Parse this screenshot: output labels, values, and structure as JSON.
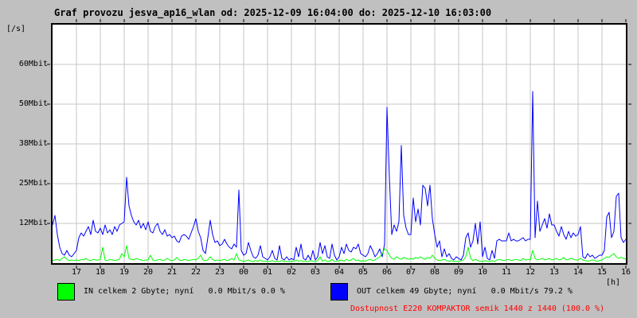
{
  "title": "Graf provozu jesva_ap16_wlan od: 2025-12-09 16:04:00 do: 2025-12-10 16:03:00",
  "colors": {
    "background": "#c0c0c0",
    "plot_background": "#ffffff",
    "grid": "#c6c6c6",
    "frame": "#000000",
    "in_series": "#00ff00",
    "out_series": "#0000ff",
    "availability_text": "#ff0000",
    "text": "#000000"
  },
  "y_axis": {
    "unit_label": "[/s]",
    "ticks": [
      {
        "label": "60Mbit",
        "mbit": 62.5
      },
      {
        "label": "50Mbit",
        "mbit": 50
      },
      {
        "label": "38Mbit",
        "mbit": 37.5
      },
      {
        "label": "25Mbit",
        "mbit": 25
      },
      {
        "label": "12Mbit",
        "mbit": 12.5
      }
    ]
  },
  "x_axis": {
    "unit_label": "[h]",
    "ticks": [
      "17",
      "18",
      "19",
      "20",
      "21",
      "22",
      "23",
      "00",
      "01",
      "02",
      "03",
      "04",
      "05",
      "06",
      "07",
      "08",
      "09",
      "10",
      "11",
      "12",
      "13",
      "14",
      "15",
      "16"
    ]
  },
  "legend": {
    "in_label": "IN celkem 2 Gbyte; nyní   0.0 Mbit/s 0.0 %",
    "out_label": "OUT celkem 49 Gbyte; nyní   0.0 Mbit/s 79.2 %"
  },
  "availability": {
    "text": "Dostupnost E220 KOMPAKTOR semik 1440 z 1440 (100.0 %)"
  },
  "chart_data": {
    "type": "line",
    "title": "Graf provozu jesva_ap16_wlan od: 2025-12-09 16:04:00 do: 2025-12-10 16:03:00",
    "xlabel": "[h] — clock hours from 17:00 through 16:00 next day",
    "ylabel": "[/s] Mbit/s",
    "ylim": [
      0,
      75
    ],
    "x_hours_start": 0,
    "x_hours_step": 0.1,
    "grid": true,
    "legend_position": "bottom",
    "series": [
      {
        "name": "IN (Mbit/s)",
        "color": "#00ff00",
        "values": [
          0.8,
          1,
          1.2,
          0.8,
          1.5,
          2,
          1.2,
          0.8,
          1,
          0.8,
          1,
          0.8,
          1.2,
          1,
          1.5,
          1,
          0.8,
          1.2,
          1,
          1,
          1.2,
          5,
          1,
          0.8,
          1.2,
          1,
          0.8,
          1,
          1.2,
          3,
          2,
          5.5,
          1.5,
          1.2,
          1,
          1.5,
          1.2,
          1,
          0.8,
          1,
          1,
          2.5,
          1,
          0.8,
          1,
          1.2,
          0.8,
          1,
          1.5,
          1,
          0.8,
          1,
          1.8,
          1,
          0.8,
          1.2,
          1,
          0.8,
          1,
          1.2,
          1,
          1.5,
          2.5,
          1,
          0.8,
          1,
          2,
          1.2,
          0.8,
          1,
          0.8,
          1,
          1.2,
          0.8,
          1,
          1.5,
          1,
          3,
          1,
          0.8,
          0.5,
          0.8,
          1,
          0.6,
          0.5,
          0.8,
          0.6,
          1,
          0.5,
          0.6,
          0.5,
          0.6,
          0.8,
          0.5,
          0.6,
          0.5,
          0.8,
          0.5,
          0.6,
          0.5,
          0.6,
          0.5,
          1,
          0.6,
          0.8,
          0.5,
          0.6,
          0.5,
          0.8,
          0.6,
          0.5,
          0.8,
          2,
          0.6,
          1,
          0.5,
          0.6,
          1.2,
          0.5,
          0.6,
          0.8,
          1,
          0.6,
          1.2,
          0.8,
          1,
          1.5,
          0.8,
          1,
          0.6,
          0.8,
          0.6,
          1,
          1.2,
          0.8,
          1,
          1.5,
          2,
          3,
          4.5,
          4,
          2.5,
          1.5,
          1.2,
          2,
          1.5,
          1.2,
          1.8,
          1.5,
          1.2,
          1.5,
          1.2,
          1.8,
          1.5,
          2,
          1.5,
          1.2,
          1.8,
          1.5,
          2.5,
          1.5,
          1,
          0.8,
          1,
          1.2,
          0.8,
          0.6,
          0.8,
          0.5,
          0.6,
          0.5,
          0.8,
          1,
          2,
          5,
          1.5,
          0.8,
          1.2,
          0.8,
          0.6,
          0.5,
          0.8,
          0.6,
          0.5,
          0.8,
          0.5,
          1,
          1.2,
          1,
          0.8,
          1,
          1.2,
          0.8,
          1,
          1.2,
          1,
          0.8,
          1.5,
          1,
          1.2,
          1,
          4,
          1.5,
          1,
          1.2,
          1.5,
          1,
          1.2,
          1.5,
          1,
          1.2,
          1.5,
          1,
          1.2,
          1.8,
          1,
          1.2,
          1.5,
          1.2,
          1,
          1,
          1.5,
          1,
          0.8,
          0.6,
          0.8,
          1,
          0.8,
          0.6,
          0.8,
          1,
          1.5,
          2,
          1.8,
          2.5,
          3,
          2,
          1.5,
          1.8,
          1.5,
          1.2
        ]
      },
      {
        "name": "OUT (Mbit/s)",
        "color": "#0000ff",
        "values": [
          12,
          15,
          9,
          5,
          3,
          2.5,
          4,
          2.5,
          2,
          3,
          4,
          8,
          9.5,
          8.5,
          10,
          11.5,
          9,
          13.5,
          10,
          9.5,
          11,
          9,
          12,
          9.5,
          10.5,
          9,
          11.5,
          10,
          12,
          12.5,
          13,
          27,
          18,
          15,
          13,
          12,
          13.5,
          11,
          12.5,
          10.5,
          13,
          10,
          9.5,
          11.5,
          12.5,
          10,
          9,
          10.5,
          8.5,
          9,
          8,
          8.5,
          7,
          6.5,
          8.5,
          9,
          8.5,
          7.5,
          9.5,
          11.5,
          14,
          10,
          8,
          4,
          3,
          8,
          13.5,
          9,
          6.5,
          7,
          5.5,
          6,
          7.5,
          6,
          5,
          4.5,
          6,
          5,
          23,
          4,
          2.5,
          3,
          6.5,
          4,
          2,
          1.5,
          2.5,
          5.5,
          2,
          1.5,
          1,
          2,
          4,
          1.5,
          1,
          5.5,
          1.5,
          1,
          2,
          1,
          1.5,
          1,
          5,
          2,
          6,
          1.5,
          1,
          2.5,
          1,
          4,
          1,
          2,
          6.5,
          3,
          5.5,
          2,
          1.5,
          6,
          2.5,
          1,
          2,
          5,
          3,
          6,
          4,
          3.5,
          5,
          4.5,
          6,
          3,
          2.5,
          2,
          3,
          5.5,
          4,
          2,
          3,
          4.5,
          2,
          6,
          49,
          27,
          9,
          12,
          10,
          13,
          37,
          15,
          11,
          9,
          9,
          20.5,
          13,
          17,
          12,
          24.5,
          23.5,
          18,
          24.5,
          14,
          9,
          5,
          7,
          2,
          4.5,
          2,
          3,
          1.5,
          1,
          2,
          1.5,
          1,
          2.5,
          8,
          9.5,
          5,
          7,
          12.5,
          6,
          13,
          2,
          5,
          1.5,
          1,
          4,
          1.5,
          7,
          7.5,
          7,
          7,
          7,
          9.5,
          7,
          7.5,
          7,
          7,
          7.5,
          8,
          7,
          7.5,
          7.5,
          54,
          8,
          19.5,
          10,
          12,
          14,
          11,
          15.5,
          12,
          12,
          10,
          8.5,
          11.5,
          9,
          7.5,
          10,
          8,
          9.5,
          8.5,
          9,
          11.5,
          2,
          1.5,
          3,
          2,
          2.5,
          1.5,
          2,
          2.5,
          2.5,
          4,
          14.5,
          16,
          8,
          10,
          21,
          22,
          8,
          6.5,
          7.5
        ]
      }
    ]
  }
}
